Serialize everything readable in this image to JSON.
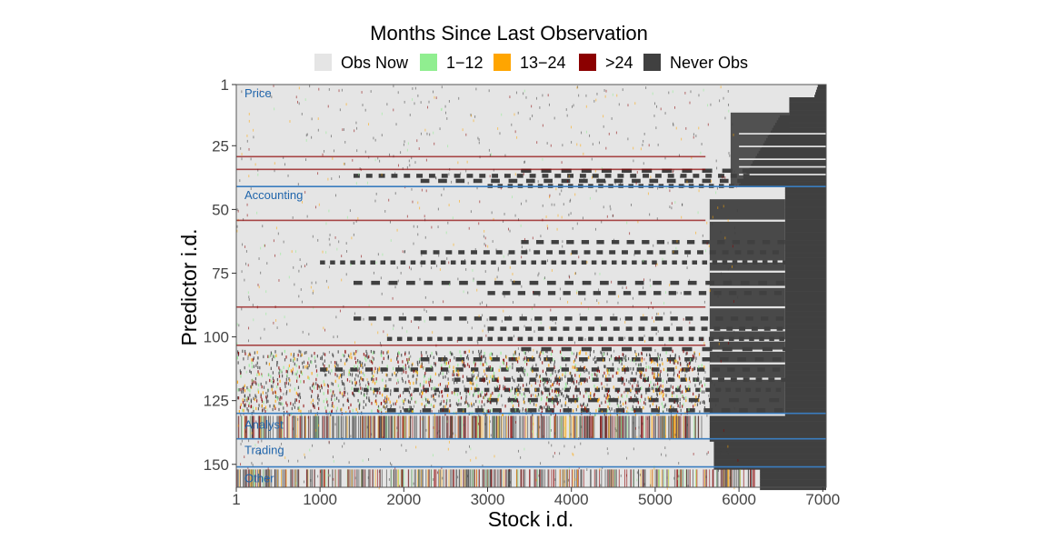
{
  "chart_data": {
    "type": "heatmap",
    "legend": {
      "title": "Months Since Last Observation",
      "placement": "top",
      "entries": [
        {
          "label": "Obs Now",
          "color": "#E5E5E5"
        },
        {
          "label": "1−12",
          "color": "#90EE90"
        },
        {
          "label": "13−24",
          "color": "#FFA500"
        },
        {
          "label": ">24",
          "color": "#8B0000"
        },
        {
          "label": "Never Obs",
          "color": "#404040"
        }
      ]
    },
    "xlabel": "Stock i.d.",
    "ylabel": "Predictor i.d.",
    "xlim": [
      1,
      7040
    ],
    "ylim": [
      1,
      159
    ],
    "x_ticks": [
      1,
      1000,
      2000,
      3000,
      4000,
      5000,
      6000,
      7000
    ],
    "y_ticks": [
      1,
      25,
      50,
      75,
      100,
      125,
      150
    ],
    "groups": [
      {
        "label": "Price",
        "start": 1
      },
      {
        "label": "Accounting",
        "start": 41
      },
      {
        "label": "Analyst",
        "start": 131
      },
      {
        "label": "Trading",
        "start": 141
      },
      {
        "label": "Other",
        "start": 152
      }
    ],
    "divider_rows": [
      41,
      130,
      140,
      151
    ],
    "divider_color": "#3A7DBF",
    "group_label_color": "#2166AC"
  }
}
